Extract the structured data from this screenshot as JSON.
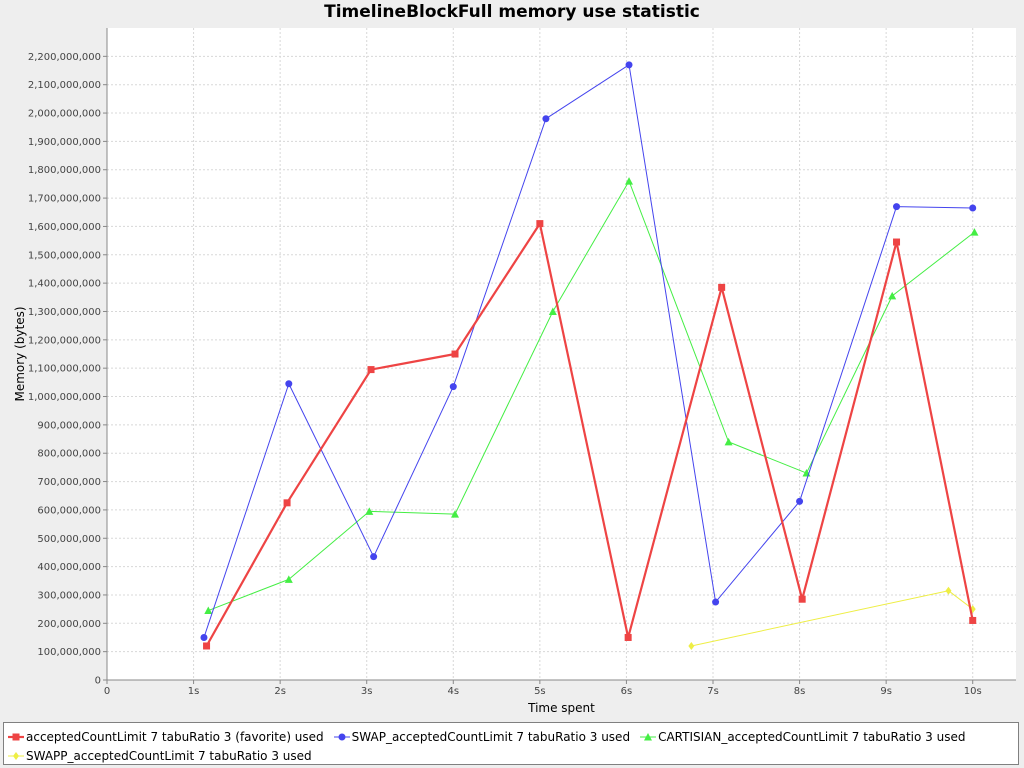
{
  "chart_data": {
    "type": "line",
    "title": "TimelineBlockFull memory use statistic",
    "xlabel": "Time spent",
    "ylabel": "Memory (bytes)",
    "x_ticks": [
      "0",
      "1s",
      "2s",
      "3s",
      "4s",
      "5s",
      "6s",
      "7s",
      "8s",
      "9s",
      "10s"
    ],
    "xlim": [
      0,
      10.5
    ],
    "ylim": [
      0,
      2300000000
    ],
    "y_ticks": [
      0,
      100000000,
      200000000,
      300000000,
      400000000,
      500000000,
      600000000,
      700000000,
      800000000,
      900000000,
      1000000000,
      1100000000,
      1200000000,
      1300000000,
      1400000000,
      1500000000,
      1600000000,
      1700000000,
      1800000000,
      1900000000,
      2000000000,
      2100000000,
      2200000000
    ],
    "y_tick_labels": [
      "0",
      "100,000,000",
      "200,000,000",
      "300,000,000",
      "400,000,000",
      "500,000,000",
      "600,000,000",
      "700,000,000",
      "800,000,000",
      "900,000,000",
      "1,000,000,000",
      "1,100,000,000",
      "1,200,000,000",
      "1,300,000,000",
      "1,400,000,000",
      "1,500,000,000",
      "1,600,000,000",
      "1,700,000,000",
      "1,800,000,000",
      "1,900,000,000",
      "2,000,000,000",
      "2,100,000,000",
      "2,200,000,000"
    ],
    "grid": true,
    "legend_position": "bottom",
    "series": [
      {
        "name": "acceptedCountLimit 7 tabuRatio 3 (favorite) used",
        "color": "#ee4444",
        "marker": "square",
        "width": 2.2,
        "x": [
          1.15,
          2.08,
          3.05,
          4.02,
          5.0,
          6.02,
          7.1,
          8.03,
          9.12,
          10.0
        ],
        "y": [
          120000000,
          625000000,
          1095000000,
          1150000000,
          1610000000,
          150000000,
          1385000000,
          285000000,
          1545000000,
          210000000
        ]
      },
      {
        "name": "SWAP_acceptedCountLimit 7 tabuRatio 3 used",
        "color": "#4444ee",
        "marker": "circle",
        "width": 1,
        "x": [
          1.12,
          2.1,
          3.08,
          4.0,
          5.07,
          6.03,
          7.03,
          8.0,
          9.12,
          10.0
        ],
        "y": [
          150000000,
          1045000000,
          435000000,
          1035000000,
          1980000000,
          2170000000,
          275000000,
          630000000,
          1670000000,
          1665000000
        ]
      },
      {
        "name": "CARTISIAN_acceptedCountLimit 7 tabuRatio 3 used",
        "color": "#44ee44",
        "marker": "triangle",
        "width": 1,
        "x": [
          1.17,
          2.1,
          3.03,
          4.02,
          5.15,
          6.03,
          7.18,
          8.08,
          9.07,
          10.02
        ],
        "y": [
          245000000,
          355000000,
          595000000,
          585000000,
          1300000000,
          1760000000,
          840000000,
          730000000,
          1355000000,
          1580000000
        ]
      },
      {
        "name": "SWAPP_acceptedCountLimit 7 tabuRatio 3 used",
        "color": "#eeee44",
        "marker": "diamond",
        "width": 1,
        "x": [
          6.75,
          9.72,
          10.0
        ],
        "y": [
          120000000,
          315000000,
          250000000
        ]
      }
    ]
  }
}
